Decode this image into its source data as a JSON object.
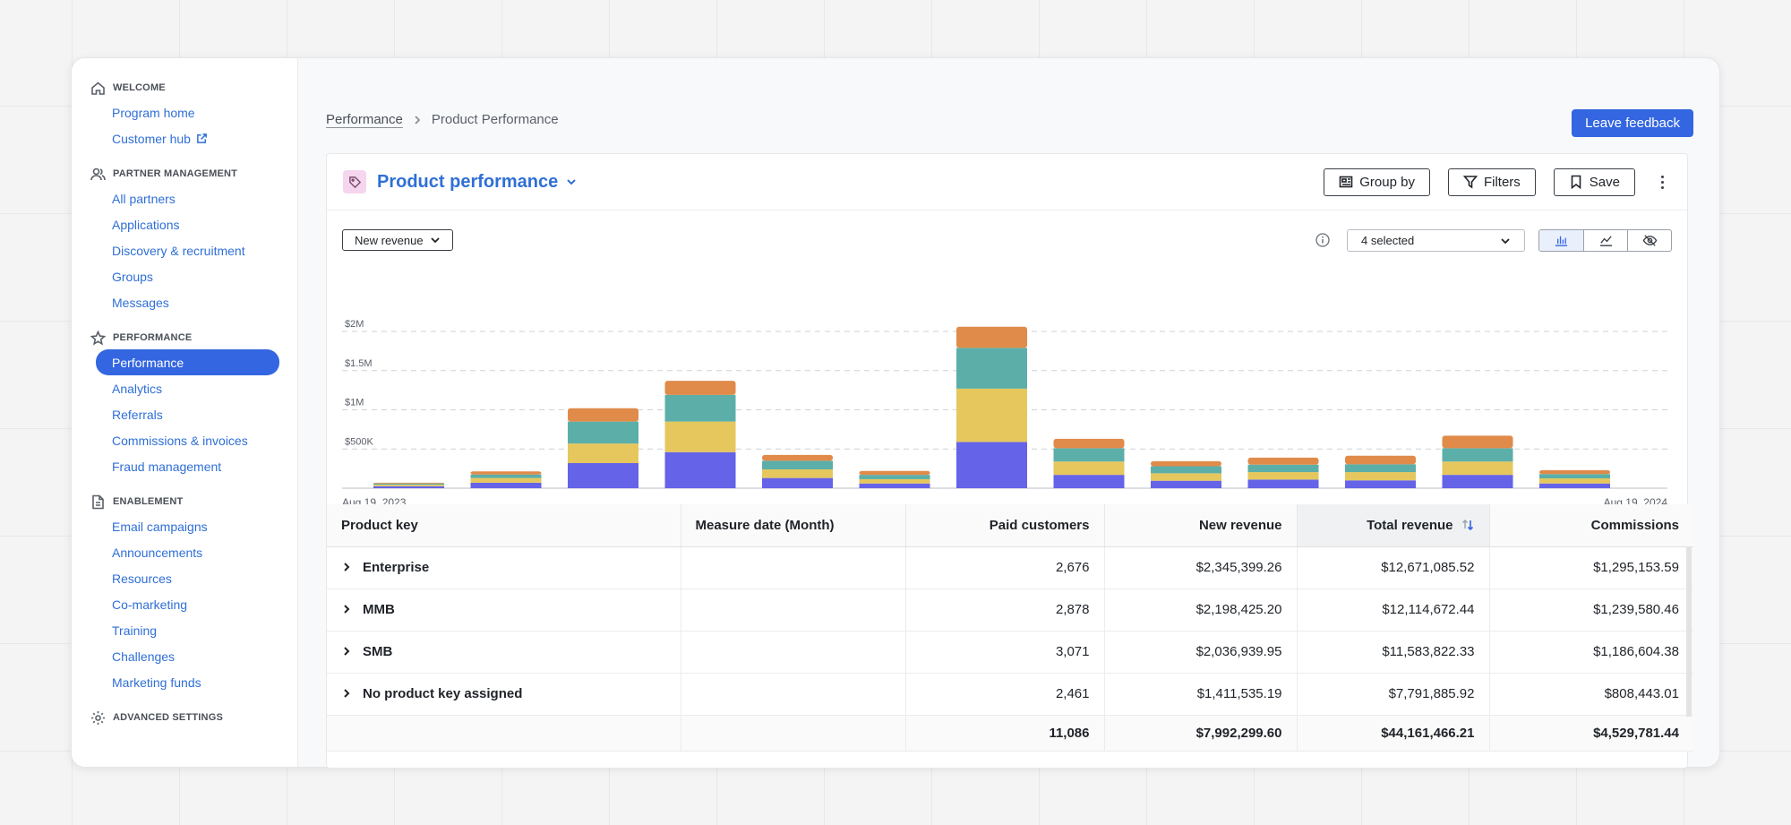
{
  "sidebar": {
    "sections": [
      {
        "title": "WELCOME",
        "icon": "home-icon",
        "items": [
          {
            "label": "Program home"
          },
          {
            "label": "Customer hub",
            "external": true
          }
        ]
      },
      {
        "title": "PARTNER MANAGEMENT",
        "icon": "users-icon",
        "items": [
          {
            "label": "All partners"
          },
          {
            "label": "Applications"
          },
          {
            "label": "Discovery & recruitment"
          },
          {
            "label": "Groups"
          },
          {
            "label": "Messages"
          }
        ]
      },
      {
        "title": "PERFORMANCE",
        "icon": "star-icon",
        "items": [
          {
            "label": "Performance",
            "active": true
          },
          {
            "label": "Analytics"
          },
          {
            "label": "Referrals"
          },
          {
            "label": "Commissions & invoices"
          },
          {
            "label": "Fraud management"
          }
        ]
      },
      {
        "title": "ENABLEMENT",
        "icon": "document-icon",
        "items": [
          {
            "label": "Email campaigns"
          },
          {
            "label": "Announcements"
          },
          {
            "label": "Resources"
          },
          {
            "label": "Co-marketing"
          },
          {
            "label": "Training"
          },
          {
            "label": "Challenges"
          },
          {
            "label": "Marketing funds"
          }
        ]
      },
      {
        "title": "ADVANCED SETTINGS",
        "icon": "gear-icon",
        "items": []
      }
    ]
  },
  "breadcrumb": {
    "parent": "Performance",
    "current": "Product Performance"
  },
  "feedback_label": "Leave feedback",
  "card": {
    "title": "Product performance",
    "group_by": "Group by",
    "filters": "Filters",
    "save": "Save",
    "measure": "New revenue",
    "selected": "4 selected"
  },
  "colors": {
    "accent": "#3366e0",
    "series": [
      "#6563e8",
      "#e6c75e",
      "#5cafa8",
      "#e08b4a"
    ]
  },
  "chart_data": {
    "type": "bar",
    "stacked": true,
    "x_start": "Aug 19, 2023",
    "x_end": "Aug 19, 2024",
    "y_ticks": [
      "$500K",
      "$1M",
      "$1.5M",
      "$2M"
    ],
    "ylim": [
      0,
      2000000
    ],
    "categories": [
      "1",
      "2",
      "3",
      "4",
      "5",
      "6",
      "7",
      "8",
      "9",
      "10",
      "11",
      "12",
      "13"
    ],
    "series": [
      {
        "values": [
          25000,
          70000,
          320000,
          460000,
          130000,
          60000,
          590000,
          170000,
          95000,
          110000,
          100000,
          170000,
          60000
        ]
      },
      {
        "values": [
          20000,
          60000,
          250000,
          390000,
          110000,
          55000,
          680000,
          170000,
          95000,
          95000,
          105000,
          170000,
          65000
        ]
      },
      {
        "values": [
          15000,
          45000,
          280000,
          340000,
          110000,
          55000,
          520000,
          170000,
          90000,
          95000,
          100000,
          170000,
          55000
        ]
      },
      {
        "values": [
          10000,
          40000,
          170000,
          180000,
          75000,
          50000,
          270000,
          120000,
          65000,
          90000,
          110000,
          160000,
          50000
        ]
      }
    ],
    "grid": true
  },
  "table": {
    "columns": [
      "Product key",
      "Measure date (Month)",
      "Paid customers",
      "New revenue",
      "Total revenue",
      "Commissions"
    ],
    "rows": [
      {
        "key": "Enterprise",
        "date": "",
        "paid": "2,676",
        "new": "$2,345,399.26",
        "total": "$12,671,085.52",
        "comm": "$1,295,153.59"
      },
      {
        "key": "MMB",
        "date": "",
        "paid": "2,878",
        "new": "$2,198,425.20",
        "total": "$12,114,672.44",
        "comm": "$1,239,580.46"
      },
      {
        "key": "SMB",
        "date": "",
        "paid": "3,071",
        "new": "$2,036,939.95",
        "total": "$11,583,822.33",
        "comm": "$1,186,604.38"
      },
      {
        "key": "No product key assigned",
        "date": "",
        "paid": "2,461",
        "new": "$1,411,535.19",
        "total": "$7,791,885.92",
        "comm": "$808,443.01"
      }
    ],
    "totals": {
      "paid": "11,086",
      "new": "$7,992,299.60",
      "total": "$44,161,466.21",
      "comm": "$4,529,781.44"
    }
  }
}
